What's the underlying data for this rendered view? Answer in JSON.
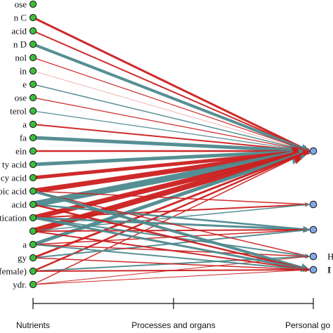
{
  "diagram": {
    "colors": {
      "positive": "#cc1f1f",
      "negative": "#4e8a8e",
      "left_node_fill": "#3bbf3b",
      "right_node_fill": "#7ea8e6",
      "node_stroke": "#111111"
    },
    "nutrients": [
      "ose",
      "n C",
      "acid",
      "n D",
      "nol",
      "in",
      "e",
      "ose",
      "terol",
      "a",
      "fa",
      "ein",
      "ty acid",
      "cy acid",
      "oic acid",
      " acid",
      "tication",
      "",
      "a",
      "gy",
      "-female)",
      "ydr."
    ],
    "goals": [
      "",
      "",
      "",
      "H",
      "I"
    ],
    "axis": {
      "left": "Nutrients",
      "middle": "Processes and organs",
      "right": "Personal go"
    },
    "links": [
      {
        "from": 1,
        "to": 0,
        "color": "positive",
        "weight": 3
      },
      {
        "from": 2,
        "to": 0,
        "color": "positive",
        "weight": 2
      },
      {
        "from": 3,
        "to": 0,
        "color": "negative",
        "weight": 4
      },
      {
        "from": 4,
        "to": 0,
        "color": "positive",
        "weight": 1.2
      },
      {
        "from": 5,
        "to": 0,
        "color": "positive",
        "weight": 0.7
      },
      {
        "from": 6,
        "to": 0,
        "color": "negative",
        "weight": 1.5
      },
      {
        "from": 7,
        "to": 0,
        "color": "positive",
        "weight": 1.2
      },
      {
        "from": 8,
        "to": 0,
        "color": "negative",
        "weight": 1.2
      },
      {
        "from": 9,
        "to": 0,
        "color": "positive",
        "weight": 2
      },
      {
        "from": 10,
        "to": 0,
        "color": "negative",
        "weight": 5
      },
      {
        "from": 11,
        "to": 0,
        "color": "positive",
        "weight": 2.5
      },
      {
        "from": 12,
        "to": 0,
        "color": "negative",
        "weight": 5
      },
      {
        "from": 13,
        "to": 0,
        "color": "positive",
        "weight": 5
      },
      {
        "from": 14,
        "to": 0,
        "color": "positive",
        "weight": 7
      },
      {
        "from": 15,
        "to": 0,
        "color": "negative",
        "weight": 9
      },
      {
        "from": 16,
        "to": 0,
        "color": "positive",
        "weight": 7
      },
      {
        "from": 17,
        "to": 0,
        "color": "positive",
        "weight": 8
      },
      {
        "from": 18,
        "to": 0,
        "color": "negative",
        "weight": 5
      },
      {
        "from": 19,
        "to": 0,
        "color": "positive",
        "weight": 3
      },
      {
        "from": 20,
        "to": 0,
        "color": "positive",
        "weight": 2.5
      },
      {
        "from": 21,
        "to": 0,
        "color": "positive",
        "weight": 1.5
      },
      {
        "from": 14,
        "to": 1,
        "color": "positive",
        "weight": 1.5
      },
      {
        "from": 16,
        "to": 1,
        "color": "positive",
        "weight": 2
      },
      {
        "from": 17,
        "to": 1,
        "color": "negative",
        "weight": 1.5
      },
      {
        "from": 15,
        "to": 2,
        "color": "negative",
        "weight": 2.5
      },
      {
        "from": 16,
        "to": 2,
        "color": "negative",
        "weight": 3
      },
      {
        "from": 17,
        "to": 2,
        "color": "positive",
        "weight": 2
      },
      {
        "from": 18,
        "to": 2,
        "color": "positive",
        "weight": 1.5
      },
      {
        "from": 19,
        "to": 2,
        "color": "negative",
        "weight": 2
      },
      {
        "from": 14,
        "to": 3,
        "color": "positive",
        "weight": 1.5
      },
      {
        "from": 16,
        "to": 3,
        "color": "negative",
        "weight": 2
      },
      {
        "from": 18,
        "to": 3,
        "color": "positive",
        "weight": 1.5
      },
      {
        "from": 20,
        "to": 3,
        "color": "negative",
        "weight": 2
      },
      {
        "from": 21,
        "to": 3,
        "color": "positive",
        "weight": 1
      },
      {
        "from": 14,
        "to": 4,
        "color": "negative",
        "weight": 4
      },
      {
        "from": 15,
        "to": 4,
        "color": "positive",
        "weight": 2.5
      },
      {
        "from": 16,
        "to": 4,
        "color": "negative",
        "weight": 3
      },
      {
        "from": 17,
        "to": 4,
        "color": "positive",
        "weight": 2
      },
      {
        "from": 18,
        "to": 4,
        "color": "negative",
        "weight": 2
      },
      {
        "from": 19,
        "to": 4,
        "color": "positive",
        "weight": 1.5
      },
      {
        "from": 20,
        "to": 4,
        "color": "positive",
        "weight": 2
      },
      {
        "from": 21,
        "to": 4,
        "color": "positive",
        "weight": 1
      }
    ]
  }
}
